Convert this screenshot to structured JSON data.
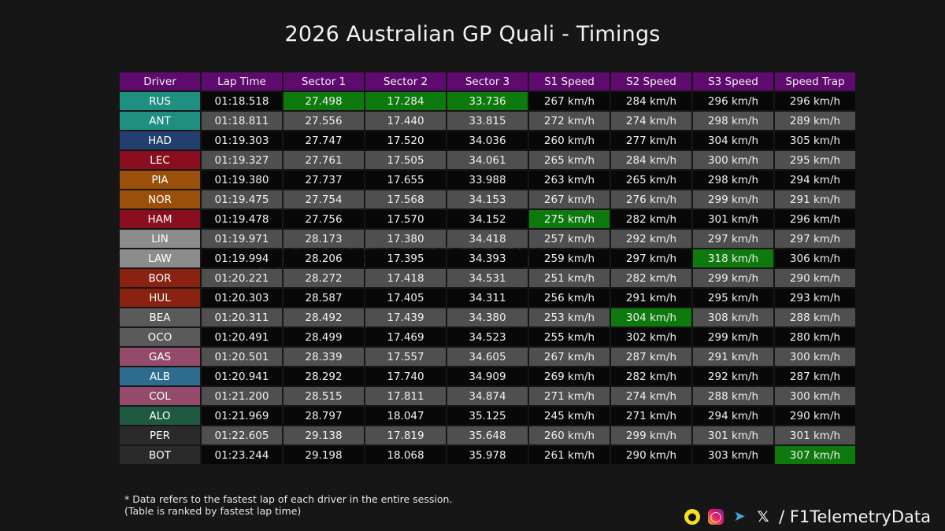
{
  "title": "2026 Australian GP Quali - Timings",
  "watermark": "@F1TelemetryDatz",
  "columns": [
    "Driver",
    "Lap Time",
    "Sector 1",
    "Sector 2",
    "Sector 3",
    "S1 Speed",
    "S2 Speed",
    "S3 Speed",
    "Speed Trap"
  ],
  "colors": {
    "header": "#5e0a6e",
    "row_dark": "#080808",
    "row_light": "#4f4f4f",
    "best": "#0e7a0e"
  },
  "chart_data": {
    "type": "table",
    "title": "2026 Australian GP Quali - Timings",
    "rows": [
      {
        "driver": "RUS",
        "team_color": "#1e8f80",
        "lap": "01:18.518",
        "s1": "27.498",
        "s2": "17.284",
        "s3": "33.736",
        "s1_speed": "267 km/h",
        "s2_speed": "284 km/h",
        "s3_speed": "296 km/h",
        "trap": "296 km/h",
        "best": [
          "s1",
          "s2",
          "s3"
        ]
      },
      {
        "driver": "ANT",
        "team_color": "#1e8f80",
        "lap": "01:18.811",
        "s1": "27.556",
        "s2": "17.440",
        "s3": "33.815",
        "s1_speed": "272 km/h",
        "s2_speed": "274 km/h",
        "s3_speed": "298 km/h",
        "trap": "289 km/h",
        "best": []
      },
      {
        "driver": "HAD",
        "team_color": "#243f6e",
        "lap": "01:19.303",
        "s1": "27.747",
        "s2": "17.520",
        "s3": "34.036",
        "s1_speed": "260 km/h",
        "s2_speed": "277 km/h",
        "s3_speed": "304 km/h",
        "trap": "305 km/h",
        "best": []
      },
      {
        "driver": "LEC",
        "team_color": "#8a0f1e",
        "lap": "01:19.327",
        "s1": "27.761",
        "s2": "17.505",
        "s3": "34.061",
        "s1_speed": "265 km/h",
        "s2_speed": "284 km/h",
        "s3_speed": "300 km/h",
        "trap": "295 km/h",
        "best": []
      },
      {
        "driver": "PIA",
        "team_color": "#9a4f0a",
        "lap": "01:19.380",
        "s1": "27.737",
        "s2": "17.655",
        "s3": "33.988",
        "s1_speed": "263 km/h",
        "s2_speed": "265 km/h",
        "s3_speed": "298 km/h",
        "trap": "294 km/h",
        "best": []
      },
      {
        "driver": "NOR",
        "team_color": "#9a4f0a",
        "lap": "01:19.475",
        "s1": "27.754",
        "s2": "17.568",
        "s3": "34.153",
        "s1_speed": "267 km/h",
        "s2_speed": "276 km/h",
        "s3_speed": "299 km/h",
        "trap": "291 km/h",
        "best": []
      },
      {
        "driver": "HAM",
        "team_color": "#8a0f1e",
        "lap": "01:19.478",
        "s1": "27.756",
        "s2": "17.570",
        "s3": "34.152",
        "s1_speed": "275 km/h",
        "s2_speed": "282 km/h",
        "s3_speed": "301 km/h",
        "trap": "296 km/h",
        "best": [
          "s1_speed"
        ]
      },
      {
        "driver": "LIN",
        "team_color": "#8c8c8c",
        "lap": "01:19.971",
        "s1": "28.173",
        "s2": "17.380",
        "s3": "34.418",
        "s1_speed": "257 km/h",
        "s2_speed": "292 km/h",
        "s3_speed": "297 km/h",
        "trap": "297 km/h",
        "best": []
      },
      {
        "driver": "LAW",
        "team_color": "#8c8c8c",
        "lap": "01:19.994",
        "s1": "28.206",
        "s2": "17.395",
        "s3": "34.393",
        "s1_speed": "259 km/h",
        "s2_speed": "297 km/h",
        "s3_speed": "318 km/h",
        "trap": "306 km/h",
        "best": [
          "s3_speed"
        ]
      },
      {
        "driver": "BOR",
        "team_color": "#8a2212",
        "lap": "01:20.221",
        "s1": "28.272",
        "s2": "17.418",
        "s3": "34.531",
        "s1_speed": "251 km/h",
        "s2_speed": "282 km/h",
        "s3_speed": "299 km/h",
        "trap": "290 km/h",
        "best": []
      },
      {
        "driver": "HUL",
        "team_color": "#8a2212",
        "lap": "01:20.303",
        "s1": "28.587",
        "s2": "17.405",
        "s3": "34.311",
        "s1_speed": "256 km/h",
        "s2_speed": "291 km/h",
        "s3_speed": "295 km/h",
        "trap": "293 km/h",
        "best": []
      },
      {
        "driver": "BEA",
        "team_color": "#5a5a5a",
        "lap": "01:20.311",
        "s1": "28.492",
        "s2": "17.439",
        "s3": "34.380",
        "s1_speed": "253 km/h",
        "s2_speed": "304 km/h",
        "s3_speed": "308 km/h",
        "trap": "288 km/h",
        "best": [
          "s2_speed"
        ]
      },
      {
        "driver": "OCO",
        "team_color": "#5a5a5a",
        "lap": "01:20.491",
        "s1": "28.499",
        "s2": "17.469",
        "s3": "34.523",
        "s1_speed": "255 km/h",
        "s2_speed": "302 km/h",
        "s3_speed": "299 km/h",
        "trap": "280 km/h",
        "best": []
      },
      {
        "driver": "GAS",
        "team_color": "#944a6a",
        "lap": "01:20.501",
        "s1": "28.339",
        "s2": "17.557",
        "s3": "34.605",
        "s1_speed": "267 km/h",
        "s2_speed": "287 km/h",
        "s3_speed": "291 km/h",
        "trap": "300 km/h",
        "best": []
      },
      {
        "driver": "ALB",
        "team_color": "#2f6a8f",
        "lap": "01:20.941",
        "s1": "28.292",
        "s2": "17.740",
        "s3": "34.909",
        "s1_speed": "269 km/h",
        "s2_speed": "282 km/h",
        "s3_speed": "292 km/h",
        "trap": "287 km/h",
        "best": []
      },
      {
        "driver": "COL",
        "team_color": "#944a6a",
        "lap": "01:21.200",
        "s1": "28.515",
        "s2": "17.811",
        "s3": "34.874",
        "s1_speed": "271 km/h",
        "s2_speed": "274 km/h",
        "s3_speed": "288 km/h",
        "trap": "300 km/h",
        "best": []
      },
      {
        "driver": "ALO",
        "team_color": "#1d5a40",
        "lap": "01:21.969",
        "s1": "28.797",
        "s2": "18.047",
        "s3": "35.125",
        "s1_speed": "245 km/h",
        "s2_speed": "271 km/h",
        "s3_speed": "294 km/h",
        "trap": "290 km/h",
        "best": []
      },
      {
        "driver": "PER",
        "team_color": "#2a2a2a",
        "lap": "01:22.605",
        "s1": "29.138",
        "s2": "17.819",
        "s3": "35.648",
        "s1_speed": "260 km/h",
        "s2_speed": "299 km/h",
        "s3_speed": "301 km/h",
        "trap": "301 km/h",
        "best": []
      },
      {
        "driver": "BOT",
        "team_color": "#2a2a2a",
        "lap": "01:23.244",
        "s1": "29.198",
        "s2": "18.068",
        "s3": "35.978",
        "s1_speed": "261 km/h",
        "s2_speed": "290 km/h",
        "s3_speed": "303 km/h",
        "trap": "307 km/h",
        "best": [
          "trap"
        ]
      }
    ]
  },
  "footnote": {
    "line1": "* Data refers to the fastest lap of each driver in the entire session.",
    "line2": "(Table is ranked by fastest lap time)"
  },
  "social": {
    "icons": [
      "snapchat-icon",
      "instagram-icon",
      "telegram-icon",
      "x-icon"
    ],
    "handle": "/ F1TelemetryData"
  }
}
